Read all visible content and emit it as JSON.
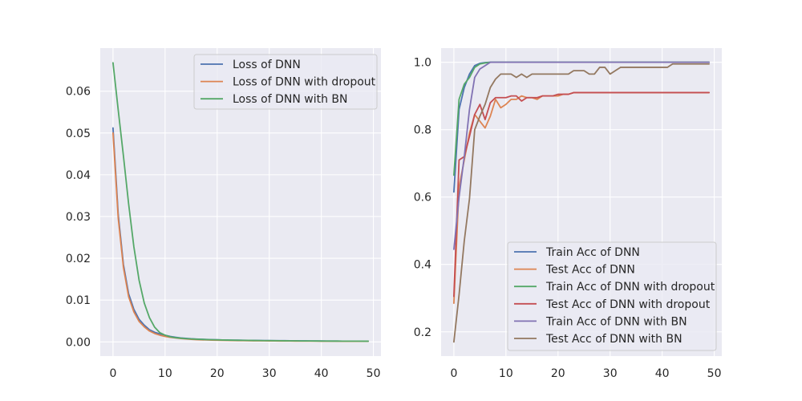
{
  "colors": {
    "background": "#eaeaf2",
    "grid": "#ffffff",
    "text": "#262626",
    "legend_bg": "#eaeaf2",
    "legend_border": "#cccccc"
  },
  "chart_data": [
    {
      "type": "line",
      "title": "",
      "xlabel": "",
      "ylabel": "",
      "xlim": [
        -2.45,
        51.45
      ],
      "ylim": [
        -0.0034,
        0.0703
      ],
      "xticks": [
        0,
        10,
        20,
        30,
        40,
        50
      ],
      "yticks": [
        0.0,
        0.01,
        0.02,
        0.03,
        0.04,
        0.05,
        0.06
      ],
      "ytick_labels": [
        "0.00",
        "0.01",
        "0.02",
        "0.03",
        "0.04",
        "0.05",
        "0.06"
      ],
      "grid": true,
      "legend_position": "top-right",
      "x": [
        0,
        1,
        2,
        3,
        4,
        5,
        6,
        7,
        8,
        9,
        10,
        11,
        12,
        13,
        14,
        15,
        16,
        17,
        18,
        19,
        20,
        21,
        22,
        23,
        24,
        25,
        26,
        27,
        28,
        29,
        30,
        31,
        32,
        33,
        34,
        35,
        36,
        37,
        38,
        39,
        40,
        41,
        42,
        43,
        44,
        45,
        46,
        47,
        48,
        49
      ],
      "series": [
        {
          "name": "Loss of DNN",
          "color": "#4c72b0",
          "values": [
            0.0512,
            0.0305,
            0.0185,
            0.0115,
            0.0078,
            0.0054,
            0.004,
            0.0029,
            0.0023,
            0.0019,
            0.0016,
            0.0013,
            0.0011,
            0.00095,
            0.00085,
            0.00075,
            0.00068,
            0.00062,
            0.00057,
            0.00053,
            0.0005,
            0.00047,
            0.00044,
            0.00042,
            0.0004,
            0.00038,
            0.00036,
            0.00035,
            0.00033,
            0.00032,
            0.00031,
            0.0003,
            0.00029,
            0.00028,
            0.00027,
            0.00026,
            0.00025,
            0.00024,
            0.00023,
            0.00022,
            0.00021,
            0.0002,
            0.0002,
            0.00019,
            0.00018,
            0.00018,
            0.00017,
            0.00017,
            0.00016,
            0.00016
          ]
        },
        {
          "name": "Loss of DNN with dropout",
          "color": "#dd8452",
          "values": [
            0.05,
            0.0296,
            0.0178,
            0.0108,
            0.0072,
            0.0049,
            0.0036,
            0.0026,
            0.002,
            0.0016,
            0.0013,
            0.0011,
            0.00095,
            0.0008,
            0.0007,
            0.00062,
            0.00055,
            0.0005,
            0.00046,
            0.00042,
            0.00039,
            0.00036,
            0.00034,
            0.00032,
            0.0003,
            0.00029,
            0.00027,
            0.00026,
            0.00025,
            0.00024,
            0.00023,
            0.00022,
            0.00021,
            0.0002,
            0.0002,
            0.00019,
            0.00018,
            0.00018,
            0.00017,
            0.00017,
            0.00016,
            0.00016,
            0.00015,
            0.00015,
            0.00014,
            0.00014,
            0.00014,
            0.00013,
            0.00013,
            0.00013
          ]
        },
        {
          "name": "Loss of DNN with BN",
          "color": "#55a868",
          "values": [
            0.0668,
            0.0555,
            0.0445,
            0.033,
            0.0228,
            0.0148,
            0.0093,
            0.0058,
            0.0035,
            0.0022,
            0.0016,
            0.0012,
            0.001,
            0.00088,
            0.00078,
            0.0007,
            0.00064,
            0.00059,
            0.00055,
            0.00051,
            0.00048,
            0.00045,
            0.00043,
            0.0004,
            0.00038,
            0.00036,
            0.00035,
            0.00033,
            0.00032,
            0.0003,
            0.00029,
            0.00028,
            0.00027,
            0.00026,
            0.00025,
            0.00024,
            0.00023,
            0.00023,
            0.00022,
            0.00021,
            0.0002,
            0.0002,
            0.00019,
            0.00019,
            0.00018,
            0.00018,
            0.00017,
            0.00017,
            0.00016,
            0.00016
          ]
        }
      ]
    },
    {
      "type": "line",
      "title": "",
      "xlabel": "",
      "ylabel": "",
      "xlim": [
        -2.45,
        51.45
      ],
      "ylim": [
        0.128,
        1.042
      ],
      "xticks": [
        0,
        10,
        20,
        30,
        40,
        50
      ],
      "yticks": [
        0.2,
        0.4,
        0.6,
        0.8,
        1.0
      ],
      "ytick_labels": [
        "0.2",
        "0.4",
        "0.6",
        "0.8",
        "1.0"
      ],
      "grid": true,
      "legend_position": "bottom-right",
      "x": [
        0,
        1,
        2,
        3,
        4,
        5,
        6,
        7,
        8,
        9,
        10,
        11,
        12,
        13,
        14,
        15,
        16,
        17,
        18,
        19,
        20,
        21,
        22,
        23,
        24,
        25,
        26,
        27,
        28,
        29,
        30,
        31,
        32,
        33,
        34,
        35,
        36,
        37,
        38,
        39,
        40,
        41,
        42,
        43,
        44,
        45,
        46,
        47,
        48,
        49
      ],
      "series": [
        {
          "name": "Train Acc of DNN",
          "color": "#4c72b0",
          "values": [
            0.615,
            0.86,
            0.925,
            0.965,
            0.99,
            0.997,
            0.999,
            1.0,
            1.0,
            1.0,
            1.0,
            1.0,
            1.0,
            1.0,
            1.0,
            1.0,
            1.0,
            1.0,
            1.0,
            1.0,
            1.0,
            1.0,
            1.0,
            1.0,
            1.0,
            1.0,
            1.0,
            1.0,
            1.0,
            1.0,
            1.0,
            1.0,
            1.0,
            1.0,
            1.0,
            1.0,
            1.0,
            1.0,
            1.0,
            1.0,
            1.0,
            1.0,
            1.0,
            1.0,
            1.0,
            1.0,
            1.0,
            1.0,
            1.0,
            1.0
          ]
        },
        {
          "name": "Test Acc of DNN",
          "color": "#dd8452",
          "values": [
            0.285,
            0.63,
            0.71,
            0.79,
            0.845,
            0.825,
            0.805,
            0.84,
            0.89,
            0.865,
            0.875,
            0.89,
            0.89,
            0.9,
            0.895,
            0.895,
            0.89,
            0.9,
            0.9,
            0.9,
            0.9,
            0.905,
            0.905,
            0.91,
            0.91,
            0.91,
            0.91,
            0.91,
            0.91,
            0.91,
            0.91,
            0.91,
            0.91,
            0.91,
            0.91,
            0.91,
            0.91,
            0.91,
            0.91,
            0.91,
            0.91,
            0.91,
            0.91,
            0.91,
            0.91,
            0.91,
            0.91,
            0.91,
            0.91,
            0.91
          ]
        },
        {
          "name": "Train Acc of DNN with dropout",
          "color": "#55a868",
          "values": [
            0.665,
            0.89,
            0.935,
            0.955,
            0.985,
            0.995,
            0.998,
            1.0,
            1.0,
            1.0,
            1.0,
            1.0,
            1.0,
            1.0,
            1.0,
            1.0,
            1.0,
            1.0,
            1.0,
            1.0,
            1.0,
            1.0,
            1.0,
            1.0,
            1.0,
            1.0,
            1.0,
            1.0,
            1.0,
            1.0,
            1.0,
            1.0,
            1.0,
            1.0,
            1.0,
            1.0,
            1.0,
            1.0,
            1.0,
            1.0,
            1.0,
            1.0,
            1.0,
            1.0,
            1.0,
            1.0,
            1.0,
            1.0,
            1.0,
            1.0
          ]
        },
        {
          "name": "Test Acc of DNN with dropout",
          "color": "#c44e52",
          "values": [
            0.305,
            0.71,
            0.72,
            0.78,
            0.845,
            0.875,
            0.83,
            0.88,
            0.895,
            0.895,
            0.895,
            0.9,
            0.9,
            0.885,
            0.895,
            0.895,
            0.895,
            0.9,
            0.9,
            0.9,
            0.905,
            0.905,
            0.905,
            0.91,
            0.91,
            0.91,
            0.91,
            0.91,
            0.91,
            0.91,
            0.91,
            0.91,
            0.91,
            0.91,
            0.91,
            0.91,
            0.91,
            0.91,
            0.91,
            0.91,
            0.91,
            0.91,
            0.91,
            0.91,
            0.91,
            0.91,
            0.91,
            0.91,
            0.91,
            0.91
          ]
        },
        {
          "name": "Train Acc of DNN with BN",
          "color": "#8172b3",
          "values": [
            0.445,
            0.6,
            0.72,
            0.86,
            0.955,
            0.98,
            0.99,
            1.0,
            1.0,
            1.0,
            1.0,
            1.0,
            1.0,
            1.0,
            1.0,
            1.0,
            1.0,
            1.0,
            1.0,
            1.0,
            1.0,
            1.0,
            1.0,
            1.0,
            1.0,
            1.0,
            1.0,
            1.0,
            1.0,
            1.0,
            1.0,
            1.0,
            1.0,
            1.0,
            1.0,
            1.0,
            1.0,
            1.0,
            1.0,
            1.0,
            1.0,
            1.0,
            1.0,
            1.0,
            1.0,
            1.0,
            1.0,
            1.0,
            1.0,
            1.0
          ]
        },
        {
          "name": "Test Acc of DNN with BN",
          "color": "#937860",
          "values": [
            0.17,
            0.31,
            0.47,
            0.595,
            0.8,
            0.84,
            0.875,
            0.925,
            0.95,
            0.965,
            0.965,
            0.965,
            0.955,
            0.965,
            0.955,
            0.965,
            0.965,
            0.965,
            0.965,
            0.965,
            0.965,
            0.965,
            0.965,
            0.975,
            0.975,
            0.975,
            0.965,
            0.965,
            0.985,
            0.985,
            0.965,
            0.975,
            0.985,
            0.985,
            0.985,
            0.985,
            0.985,
            0.985,
            0.985,
            0.985,
            0.985,
            0.985,
            0.995,
            0.995,
            0.995,
            0.995,
            0.995,
            0.995,
            0.995,
            0.995
          ]
        }
      ]
    }
  ]
}
